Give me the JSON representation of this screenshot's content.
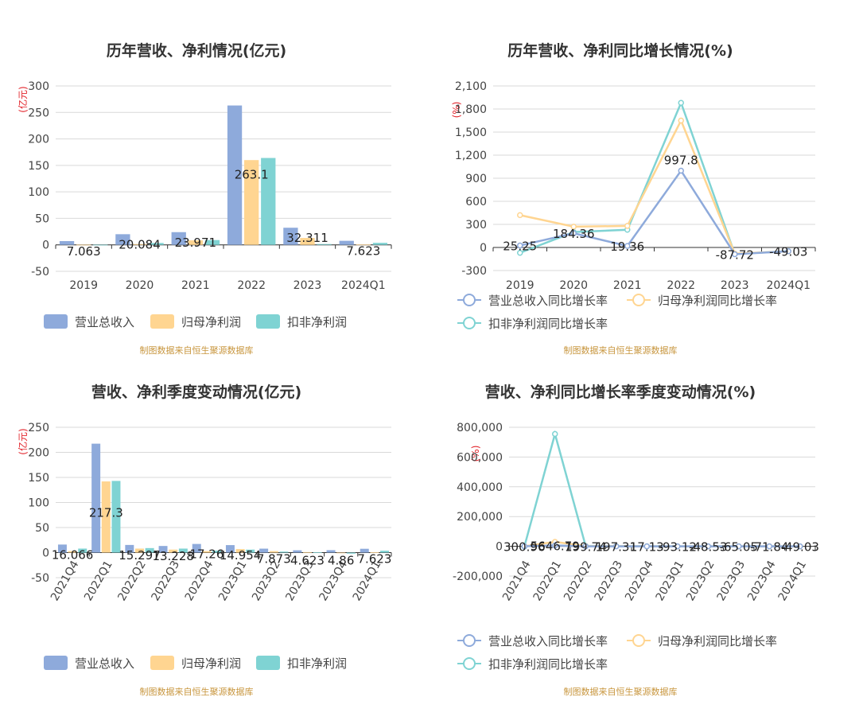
{
  "colors": {
    "revenue": "#8eaadb",
    "parent_net": "#ffd591",
    "deducted_net": "#7fd3d3",
    "source_text": "#c8963e",
    "unit_text": "#e2232a"
  },
  "chart_data": [
    {
      "id": "annual-values",
      "type": "bar",
      "title": "历年营收、净利情况(亿元)",
      "ylabel": "(亿元)",
      "source": "制图数据来自恒生聚源数据库",
      "categories": [
        "2019",
        "2020",
        "2021",
        "2022",
        "2023",
        "2024Q1"
      ],
      "ylim": [
        -50,
        300
      ],
      "yticks": [
        -50,
        0,
        50,
        100,
        150,
        200,
        250,
        300
      ],
      "ytick_labels": [
        "-50",
        "0",
        "50",
        "100",
        "150",
        "200",
        "250",
        "300"
      ],
      "grid": true,
      "legend": "bottom",
      "series": [
        {
          "name": "营业总收入",
          "color_key": "revenue",
          "values": [
            7.063,
            20.084,
            23.971,
            263.1,
            32.311,
            7.623
          ]
        },
        {
          "name": "归母净利润",
          "color_key": "parent_net",
          "values": [
            0.3,
            1.5,
            8.5,
            160,
            13,
            0.6
          ]
        },
        {
          "name": "扣非净利润",
          "color_key": "deducted_net",
          "values": [
            0.2,
            3.5,
            9.0,
            164,
            1.5,
            3.8
          ]
        }
      ],
      "data_labels": [
        "7.063",
        "20.084",
        "23.971",
        "263.1",
        "32.311",
        "7.623"
      ]
    },
    {
      "id": "annual-growth",
      "type": "line",
      "title": "历年营收、净利同比增长情况(%)",
      "ylabel": "(%)",
      "source": "制图数据来自恒生聚源数据库",
      "categories": [
        "2019",
        "2020",
        "2021",
        "2022",
        "2023",
        "2024Q1"
      ],
      "ylim": [
        -300,
        2100
      ],
      "yticks": [
        -300,
        0,
        300,
        600,
        900,
        1200,
        1500,
        1800,
        2100
      ],
      "ytick_labels": [
        "-300",
        "0",
        "300",
        "600",
        "900",
        "1,200",
        "1,500",
        "1,800",
        "2,100"
      ],
      "grid": true,
      "legend": "bottom",
      "series": [
        {
          "name": "营业总收入同比增长率",
          "color_key": "revenue",
          "values": [
            25.25,
            184.36,
            19.36,
            997.8,
            -87.72,
            -49.03
          ]
        },
        {
          "name": "归母净利润同比增长率",
          "color_key": "parent_net",
          "values": [
            420,
            270,
            280,
            1650,
            -80,
            -50
          ]
        },
        {
          "name": "扣非净利润同比增长率",
          "color_key": "deducted_net",
          "values": [
            -70,
            200,
            230,
            1880,
            -85,
            -48
          ]
        }
      ],
      "data_labels": [
        "25.25",
        "184.36",
        "19.36",
        "997.8",
        "-87.72",
        "-49.03"
      ]
    },
    {
      "id": "quarterly-values",
      "type": "bar",
      "title": "营收、净利季度变动情况(亿元)",
      "ylabel": "(亿元)",
      "source": "制图数据来自恒生聚源数据库",
      "categories": [
        "2021Q4",
        "2022Q1",
        "2022Q2",
        "2022Q3",
        "2022Q4",
        "2023Q1",
        "2023Q2",
        "2023Q3",
        "2023Q4",
        "2024Q1"
      ],
      "ylim": [
        -50,
        250
      ],
      "yticks": [
        -50,
        0,
        50,
        100,
        150,
        200,
        250
      ],
      "ytick_labels": [
        "-50",
        "0",
        "50",
        "100",
        "150",
        "200",
        "250"
      ],
      "grid": true,
      "legend": "bottom",
      "series": [
        {
          "name": "营业总收入",
          "color_key": "revenue",
          "values": [
            16.066,
            217.3,
            15.297,
            13.228,
            17.26,
            14.954,
            7.873,
            4.623,
            4.86,
            7.623
          ]
        },
        {
          "name": "归母净利润",
          "color_key": "parent_net",
          "values": [
            3,
            142,
            8,
            6,
            3,
            7,
            3,
            1,
            -1,
            0.6
          ]
        },
        {
          "name": "扣非净利润",
          "color_key": "deducted_net",
          "values": [
            8,
            143,
            9,
            8,
            4,
            6,
            2,
            0.5,
            -2,
            3.8
          ]
        }
      ],
      "data_labels": [
        "16.066",
        "217.3",
        "15.297",
        "13.228",
        "17.26",
        "14.954",
        "7.873",
        "4.623",
        "4.86",
        "7.623"
      ]
    },
    {
      "id": "quarterly-growth",
      "type": "line",
      "title": "营收、净利同比增长率季度变动情况(%)",
      "ylabel": "(%)",
      "source": "制图数据来自恒生聚源数据库",
      "categories": [
        "2021Q4",
        "2022Q1",
        "2022Q2",
        "2022Q3",
        "2022Q4",
        "2023Q1",
        "2023Q2",
        "2023Q3",
        "2023Q4",
        "2024Q1"
      ],
      "ylim": [
        -200000,
        800000
      ],
      "yticks": [
        -200000,
        0,
        200000,
        400000,
        600000,
        800000
      ],
      "ytick_labels": [
        "-200,000",
        "0",
        "200,000",
        "400,000",
        "600,000",
        "800,000"
      ],
      "grid": true,
      "legend": "bottom",
      "series": [
        {
          "name": "营业总收入同比增长率",
          "color_key": "revenue",
          "values": [
            300.96,
            5646.79,
            199.74,
            197.31,
            17.13,
            -93.12,
            -48.53,
            -65.05,
            -71.84,
            -49.03
          ]
        },
        {
          "name": "归母净利润同比增长率",
          "color_key": "parent_net",
          "values": [
            500,
            30000,
            2000,
            1000,
            200,
            -90,
            -50,
            -70,
            -80,
            -50
          ]
        },
        {
          "name": "扣非净利润同比增长率",
          "color_key": "deducted_net",
          "values": [
            -2000,
            755000,
            3000,
            1500,
            300,
            -95,
            -60,
            -70,
            -90,
            -48
          ]
        }
      ],
      "data_labels": [
        "300.96",
        "5646.79",
        "199.74",
        "197.31",
        "17.13",
        "-93.12",
        "-48.53",
        "-65.05",
        "-71.84",
        "-49.03"
      ]
    }
  ]
}
